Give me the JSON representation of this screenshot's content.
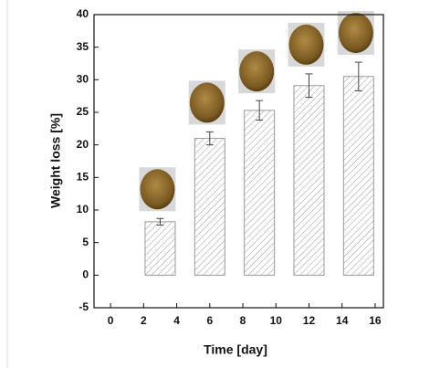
{
  "chart_data": {
    "type": "bar",
    "xlabel": "Time [day]",
    "ylabel": "Weight loss [%]",
    "x": [
      0,
      3,
      6,
      9,
      12,
      15
    ],
    "values": [
      0,
      8.2,
      21,
      25.3,
      29.1,
      30.5
    ],
    "errors": [
      0,
      0.5,
      1,
      1.5,
      1.8,
      2.2
    ],
    "xlim": [
      -1,
      16.5
    ],
    "ylim": [
      -5,
      40
    ],
    "xticks": [
      0,
      2,
      4,
      6,
      8,
      10,
      12,
      14,
      16
    ],
    "yticks": [
      -5,
      0,
      5,
      10,
      15,
      20,
      25,
      30,
      35,
      40
    ],
    "color": "#9a9a9a"
  }
}
